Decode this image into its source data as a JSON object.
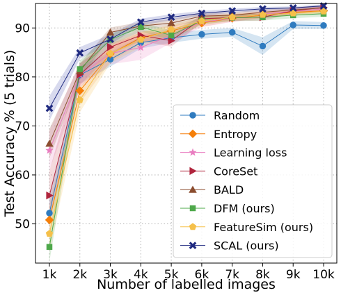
{
  "chart_data": {
    "type": "line",
    "categories": [
      "1k",
      "2k",
      "3k",
      "4k",
      "5k",
      "6k",
      "7k",
      "8k",
      "9k",
      "10k"
    ],
    "xlabel": "Number of labelled images",
    "ylabel": "Test Accuracy % (5 trials)",
    "ylim": [
      42,
      95
    ],
    "yticks": [
      50,
      60,
      70,
      80,
      90
    ],
    "grid": true,
    "legend_position": "bottom-right",
    "series": [
      {
        "name": "Random",
        "color": "#2f7bbf",
        "marker": "circle",
        "values": [
          52.2,
          80.4,
          83.6,
          87.0,
          88.0,
          88.7,
          89.1,
          86.3,
          90.6,
          90.5
        ],
        "band": [
          3.0,
          1.8,
          1.5,
          1.2,
          1.0,
          0.9,
          0.9,
          1.8,
          0.8,
          0.7
        ],
        "band_color": "#2f7bbf"
      },
      {
        "name": "Entropy",
        "color": "#f57f0a",
        "marker": "diamond",
        "values": [
          50.8,
          77.2,
          84.7,
          88.0,
          89.4,
          91.0,
          92.0,
          92.6,
          93.2,
          93.5
        ],
        "band": [
          3.0,
          2.5,
          1.6,
          1.2,
          1.0,
          0.8,
          0.7,
          0.6,
          0.5,
          0.5
        ],
        "band_color": "#f5a04a"
      },
      {
        "name": "Learning loss",
        "color": "#e97dc0",
        "marker": "star",
        "values": [
          65.0,
          80.4,
          84.8,
          86.0,
          88.5,
          91.2,
          92.0,
          92.8,
          93.4,
          93.9
        ],
        "band": [
          4.0,
          2.5,
          2.2,
          2.5,
          1.5,
          1.0,
          0.8,
          0.7,
          0.6,
          0.5
        ],
        "band_color": "#e97dc0"
      },
      {
        "name": "CoreSet",
        "color": "#b0243c",
        "marker": "triangle-right",
        "values": [
          55.8,
          80.5,
          86.1,
          88.5,
          87.4,
          91.9,
          92.1,
          92.2,
          93.5,
          94.2
        ],
        "band": [
          5.0,
          2.2,
          1.5,
          1.2,
          1.2,
          0.8,
          0.7,
          0.7,
          0.6,
          0.5
        ],
        "band_color": "#c84050"
      },
      {
        "name": "BALD",
        "color": "#8b4d2f",
        "marker": "triangle-up",
        "values": [
          66.4,
          81.2,
          89.1,
          90.4,
          91.0,
          92.4,
          92.6,
          93.2,
          93.7,
          94.1
        ],
        "band": [
          3.0,
          1.5,
          1.0,
          0.8,
          0.8,
          0.7,
          0.6,
          0.6,
          0.5,
          0.5
        ],
        "band_color": "#8b4d2f"
      },
      {
        "name": "DFM (ours)",
        "color": "#4ea84a",
        "marker": "square",
        "values": [
          45.3,
          81.6,
          87.6,
          90.2,
          88.5,
          91.5,
          92.1,
          92.2,
          92.6,
          92.9
        ],
        "band": [
          3.0,
          1.8,
          1.2,
          0.9,
          1.0,
          0.8,
          0.7,
          0.7,
          0.6,
          0.6
        ],
        "band_color": "#4ea84a"
      },
      {
        "name": "FeatureSim (ours)",
        "color": "#f5c04a",
        "marker": "pentagon",
        "values": [
          48.0,
          75.3,
          84.8,
          87.6,
          89.7,
          91.4,
          92.2,
          92.7,
          93.0,
          93.4
        ],
        "band": [
          3.5,
          2.5,
          2.0,
          1.5,
          1.0,
          0.8,
          0.7,
          0.6,
          0.5,
          0.5
        ],
        "band_color": "#f5c04a"
      },
      {
        "name": "SCAL (ours)",
        "color": "#1f2a80",
        "marker": "x",
        "values": [
          73.6,
          84.9,
          87.7,
          91.2,
          92.2,
          93.0,
          93.5,
          93.9,
          94.1,
          94.5
        ],
        "band": [
          2.5,
          1.2,
          1.0,
          0.7,
          0.6,
          0.5,
          0.4,
          0.4,
          0.3,
          0.3
        ],
        "band_color": "#3a47a8"
      }
    ]
  }
}
